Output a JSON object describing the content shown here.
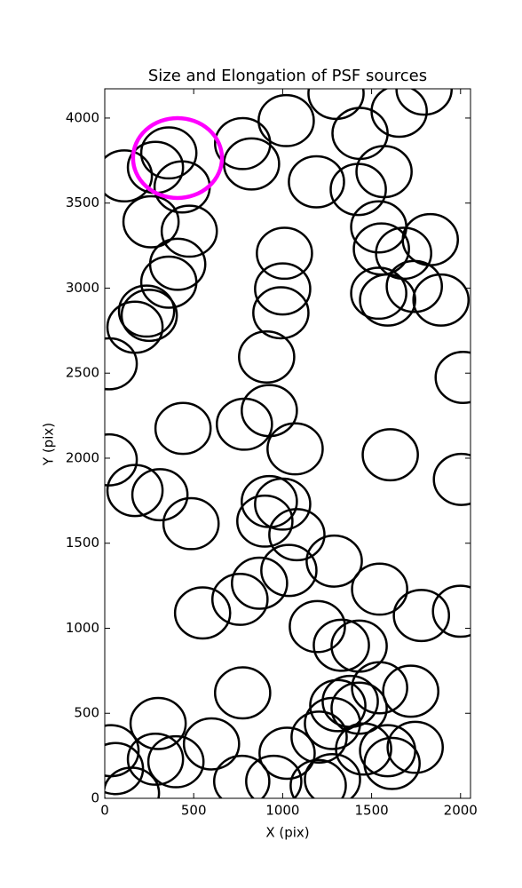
{
  "chart_data": {
    "type": "ellipse",
    "title": "Size and Elongation of PSF sources",
    "xlabel": "X (pix)",
    "ylabel": "Y (pix)",
    "xlim": [
      0,
      2056
    ],
    "ylim": [
      0,
      4172
    ],
    "xticks": [
      0,
      500,
      1000,
      1500,
      2000
    ],
    "yticks": [
      0,
      500,
      1000,
      1500,
      2000,
      2500,
      3000,
      3500,
      4000
    ],
    "color": "#000000",
    "width": 310,
    "height": 300,
    "x": [
      110,
      285,
      360,
      435,
      260,
      475,
      410,
      360,
      235,
      250,
      170,
      25,
      775,
      825,
      1020,
      1190,
      1300,
      1435,
      1425,
      1570,
      1655,
      1795,
      1540,
      1555,
      1680,
      1830,
      1540,
      1590,
      1740,
      1890,
      1010,
      1000,
      990,
      910,
      2015,
      925,
      785,
      1070,
      440,
      1605,
      2005,
      25,
      170,
      310,
      485,
      925,
      1000,
      900,
      1080,
      1035,
      1290,
      1545,
      870,
      760,
      550,
      1195,
      1330,
      1430,
      1780,
      2000,
      775,
      300,
      35,
      60,
      150,
      285,
      400,
      600,
      770,
      1025,
      950,
      1200,
      1280,
      1205,
      1280,
      1310,
      1380,
      1430,
      1545,
      1720,
      1455,
      1590,
      1615,
      1745
    ],
    "y": [
      3660,
      3710,
      3795,
      3595,
      3390,
      3335,
      3140,
      3035,
      2865,
      2840,
      2770,
      2555,
      3850,
      3730,
      3985,
      3625,
      4145,
      3910,
      3580,
      3685,
      4040,
      4170,
      3360,
      3230,
      3205,
      3285,
      2970,
      2930,
      3010,
      2930,
      3205,
      2995,
      2855,
      2595,
      2475,
      2280,
      2200,
      2055,
      2175,
      2020,
      1875,
      1990,
      1810,
      1785,
      1615,
      1745,
      1730,
      1630,
      1550,
      1340,
      1395,
      1230,
      1265,
      1170,
      1090,
      1010,
      900,
      895,
      1075,
      1100,
      620,
      440,
      280,
      175,
      30,
      230,
      215,
      320,
      100,
      265,
      100,
      75,
      110,
      360,
      440,
      545,
      570,
      530,
      650,
      630,
      290,
      280,
      205,
      300
    ],
    "highlight": {
      "x": 409,
      "y": 3765,
      "width": 500,
      "height": 470,
      "color": "#ff00ff"
    }
  }
}
